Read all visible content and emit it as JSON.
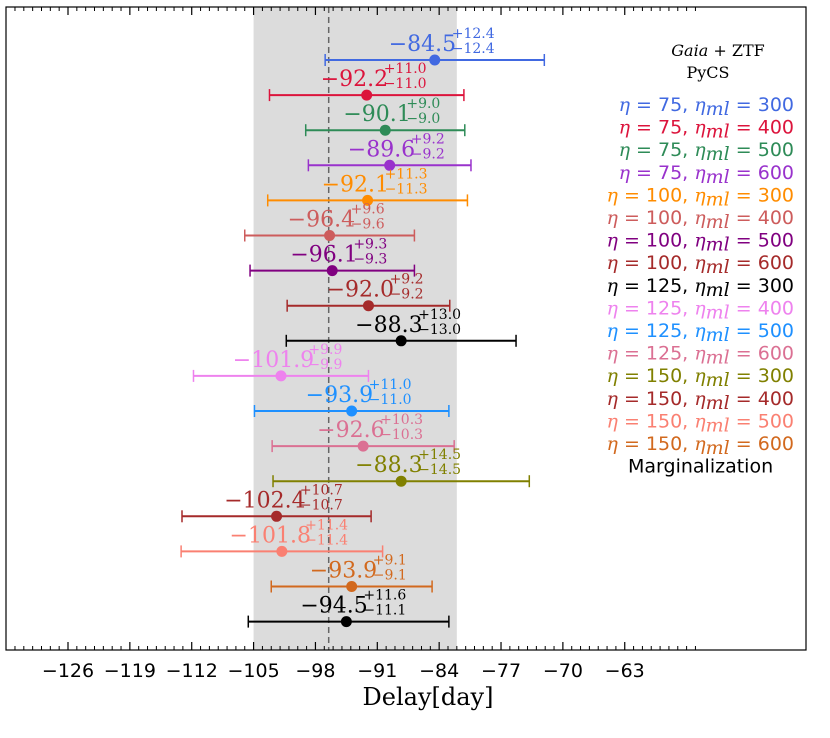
{
  "chart_data": {
    "type": "scatter",
    "title": "",
    "xlabel": "Delay[day]",
    "ylabel": "",
    "xlim": [
      -130,
      -55
    ],
    "grid": false,
    "x_ticks": [
      -126,
      -119,
      -112,
      -105,
      -98,
      -91,
      -84,
      -77,
      -70,
      -63
    ],
    "x_tick_labels": [
      "−126",
      "−119",
      "−112",
      "−105",
      "−98",
      "−91",
      "−84",
      "−77",
      "−70",
      "−63"
    ],
    "shaded_band": [
      -105,
      -82
    ],
    "reference_line": -96.5,
    "legend_header": [
      {
        "italic": "Gaia",
        "plain": " + ZTF"
      },
      {
        "italic": "",
        "plain": "PyCS"
      }
    ],
    "legend_placement": "right",
    "series": [
      {
        "name": "η = 75, η_ml = 300",
        "eta": "75",
        "eta_ml": "300",
        "color": "#4169e1",
        "value": -84.5,
        "plus": 12.4,
        "minus": 12.4,
        "label_main": "−84.5",
        "label_plus": "+12.4",
        "label_minus": "−12.4"
      },
      {
        "name": "η = 75, η_ml = 400",
        "eta": "75",
        "eta_ml": "400",
        "color": "#dc143c",
        "value": -92.2,
        "plus": 11.0,
        "minus": 11.0,
        "label_main": "−92.2",
        "label_plus": "+11.0",
        "label_minus": "−11.0"
      },
      {
        "name": "η = 75, η_ml = 500",
        "eta": "75",
        "eta_ml": "500",
        "color": "#2e8b57",
        "value": -90.1,
        "plus": 9.0,
        "minus": 9.0,
        "label_main": "−90.1",
        "label_plus": "+9.0",
        "label_minus": "−9.0"
      },
      {
        "name": "η = 75, η_ml = 600",
        "eta": "75",
        "eta_ml": "600",
        "color": "#9932cc",
        "value": -89.6,
        "plus": 9.2,
        "minus": 9.2,
        "label_main": "−89.6",
        "label_plus": "+9.2",
        "label_minus": "−9.2"
      },
      {
        "name": "η = 100, η_ml = 300",
        "eta": "100",
        "eta_ml": "300",
        "color": "#ff8c00",
        "value": -92.1,
        "plus": 11.3,
        "minus": 11.3,
        "label_main": "−92.1",
        "label_plus": "+11.3",
        "label_minus": "−11.3"
      },
      {
        "name": "η = 100, η_ml = 400",
        "eta": "100",
        "eta_ml": "400",
        "color": "#cd5c5c",
        "value": -96.4,
        "plus": 9.6,
        "minus": 9.6,
        "label_main": "−96.4",
        "label_plus": "+9.6",
        "label_minus": "−9.6"
      },
      {
        "name": "η = 100, η_ml = 500",
        "eta": "100",
        "eta_ml": "500",
        "color": "#800080",
        "value": -96.1,
        "plus": 9.3,
        "minus": 9.3,
        "label_main": "−96.1",
        "label_plus": "+9.3",
        "label_minus": "−9.3"
      },
      {
        "name": "η = 100, η_ml = 600",
        "eta": "100",
        "eta_ml": "600",
        "color": "#a52a2a",
        "value": -92.0,
        "plus": 9.2,
        "minus": 9.2,
        "label_main": "−92.0",
        "label_plus": "+9.2",
        "label_minus": "−9.2"
      },
      {
        "name": "η = 125, η_ml = 300",
        "eta": "125",
        "eta_ml": "300",
        "color": "#000000",
        "value": -88.3,
        "plus": 13.0,
        "minus": 13.0,
        "label_main": "−88.3",
        "label_plus": "+13.0",
        "label_minus": "−13.0"
      },
      {
        "name": "η = 125, η_ml = 400",
        "eta": "125",
        "eta_ml": "400",
        "color": "#ee82ee",
        "value": -101.9,
        "plus": 9.9,
        "minus": 9.9,
        "label_main": "−101.9",
        "label_plus": "+9.9",
        "label_minus": "−9.9"
      },
      {
        "name": "η = 125, η_ml = 500",
        "eta": "125",
        "eta_ml": "500",
        "color": "#1e90ff",
        "value": -93.9,
        "plus": 11.0,
        "minus": 11.0,
        "label_main": "−93.9",
        "label_plus": "+11.0",
        "label_minus": "−11.0"
      },
      {
        "name": "η = 125, η_ml = 600",
        "eta": "125",
        "eta_ml": "600",
        "color": "#db7093",
        "value": -92.6,
        "plus": 10.3,
        "minus": 10.3,
        "label_main": "−92.6",
        "label_plus": "+10.3",
        "label_minus": "−10.3"
      },
      {
        "name": "η = 150, η_ml = 300",
        "eta": "150",
        "eta_ml": "300",
        "color": "#808000",
        "value": -88.3,
        "plus": 14.5,
        "minus": 14.5,
        "label_main": "−88.3",
        "label_plus": "+14.5",
        "label_minus": "−14.5"
      },
      {
        "name": "η = 150, η_ml = 400",
        "eta": "150",
        "eta_ml": "400",
        "color": "#a52a2a",
        "value": -102.4,
        "plus": 10.7,
        "minus": 10.7,
        "label_main": "−102.4",
        "label_plus": "+10.7",
        "label_minus": "−10.7"
      },
      {
        "name": "η = 150, η_ml = 500",
        "eta": "150",
        "eta_ml": "500",
        "color": "#fa8072",
        "value": -101.8,
        "plus": 11.4,
        "minus": 11.4,
        "label_main": "−101.8",
        "label_plus": "+11.4",
        "label_minus": "−11.4"
      },
      {
        "name": "η = 150, η_ml = 600",
        "eta": "150",
        "eta_ml": "600",
        "color": "#d2691e",
        "value": -93.9,
        "plus": 9.1,
        "minus": 9.1,
        "label_main": "−93.9",
        "label_plus": "+9.1",
        "label_minus": "−9.1"
      },
      {
        "name": "Marginalization",
        "eta": "",
        "eta_ml": "",
        "color": "#000000",
        "value": -94.5,
        "plus": 11.6,
        "minus": 11.1,
        "label_main": "−94.5",
        "label_plus": "+11.6",
        "label_minus": "−11.1"
      }
    ]
  }
}
